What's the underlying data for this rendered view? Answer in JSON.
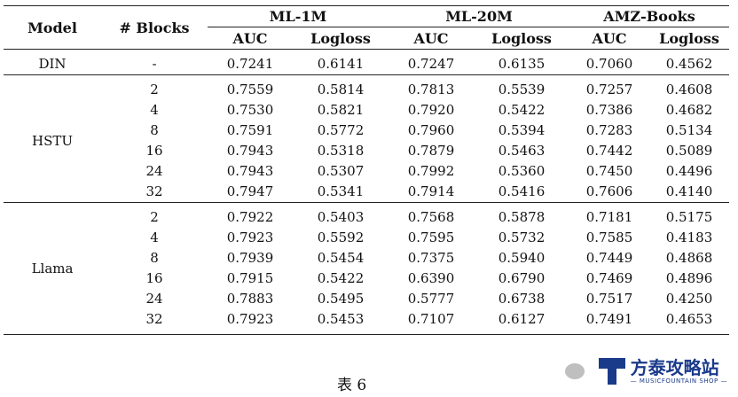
{
  "header": {
    "model": "Model",
    "blocks": "# Blocks",
    "datasets": [
      "ML-1M",
      "ML-20M",
      "AMZ-Books"
    ],
    "metrics": [
      "AUC",
      "Logloss",
      "AUC",
      "Logloss",
      "AUC",
      "Logloss"
    ]
  },
  "groups": [
    {
      "model": "DIN",
      "rows": [
        {
          "blocks": "-",
          "values": [
            "0.7241",
            "0.6141",
            "0.7247",
            "0.6135",
            "0.7060",
            "0.4562"
          ]
        }
      ]
    },
    {
      "model": "HSTU",
      "rows": [
        {
          "blocks": "2",
          "values": [
            "0.7559",
            "0.5814",
            "0.7813",
            "0.5539",
            "0.7257",
            "0.4608"
          ]
        },
        {
          "blocks": "4",
          "values": [
            "0.7530",
            "0.5821",
            "0.7920",
            "0.5422",
            "0.7386",
            "0.4682"
          ]
        },
        {
          "blocks": "8",
          "values": [
            "0.7591",
            "0.5772",
            "0.7960",
            "0.5394",
            "0.7283",
            "0.5134"
          ]
        },
        {
          "blocks": "16",
          "values": [
            "0.7943",
            "0.5318",
            "0.7879",
            "0.5463",
            "0.7442",
            "0.5089"
          ]
        },
        {
          "blocks": "24",
          "values": [
            "0.7943",
            "0.5307",
            "0.7992",
            "0.5360",
            "0.7450",
            "0.4496"
          ]
        },
        {
          "blocks": "32",
          "values": [
            "0.7947",
            "0.5341",
            "0.7914",
            "0.5416",
            "0.7606",
            "0.4140"
          ]
        }
      ]
    },
    {
      "model": "Llama",
      "rows": [
        {
          "blocks": "2",
          "values": [
            "0.7922",
            "0.5403",
            "0.7568",
            "0.5878",
            "0.7181",
            "0.5175"
          ]
        },
        {
          "blocks": "4",
          "values": [
            "0.7923",
            "0.5592",
            "0.7595",
            "0.5732",
            "0.7585",
            "0.4183"
          ]
        },
        {
          "blocks": "8",
          "values": [
            "0.7939",
            "0.5454",
            "0.7375",
            "0.5940",
            "0.7449",
            "0.4868"
          ]
        },
        {
          "blocks": "16",
          "values": [
            "0.7915",
            "0.5422",
            "0.6390",
            "0.6790",
            "0.7469",
            "0.4896"
          ]
        },
        {
          "blocks": "24",
          "values": [
            "0.7883",
            "0.5495",
            "0.5777",
            "0.6738",
            "0.7517",
            "0.4250"
          ]
        },
        {
          "blocks": "32",
          "values": [
            "0.7923",
            "0.5453",
            "0.7107",
            "0.6127",
            "0.7491",
            "0.4653"
          ]
        }
      ]
    }
  ],
  "caption": "表 6",
  "watermark": {
    "title": "方泰攻略站",
    "subtitle": "— MUSICFOUNTAIN SHOP —"
  }
}
